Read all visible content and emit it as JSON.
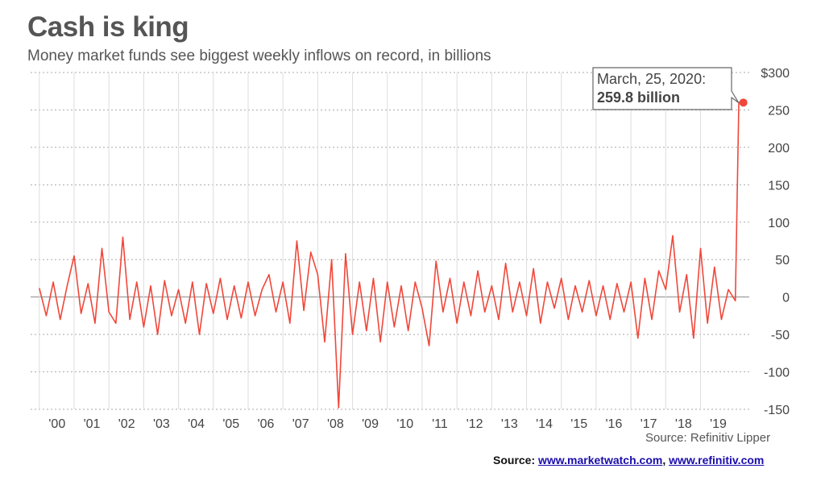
{
  "header": {
    "title": "Cash is king",
    "subtitle": "Money market funds see biggest weekly inflows on record, in billions"
  },
  "source_note": "Source: Refinitiv Lipper",
  "footer": {
    "prefix": "Source:",
    "link1": "www.marketwatch.com",
    "separator": ",",
    "link2": "www.refinitiv.com"
  },
  "chart_data": {
    "type": "line",
    "title": "Cash is king",
    "subtitle": "Money market funds see biggest weekly inflows on record, in billions",
    "xlabel": "",
    "ylabel": "",
    "ylim": [
      -150,
      300
    ],
    "xlim": [
      1999.75,
      2020.4
    ],
    "y_ticks": [
      300,
      250,
      200,
      150,
      100,
      50,
      0,
      -50,
      -100,
      -150
    ],
    "y_tick_labels": [
      "$300",
      "250",
      "200",
      "150",
      "100",
      "50",
      "0",
      "-50",
      "-100",
      "-150"
    ],
    "x_tick_labels": [
      "'00",
      "'01",
      "'02",
      "'03",
      "'04",
      "'05",
      "'06",
      "'07",
      "'08",
      "'09",
      "'10",
      "'11",
      "'12",
      "'13",
      "'14",
      "'15",
      "'16",
      "'17",
      "'18",
      "'19"
    ],
    "grid": true,
    "line_color": "#f0473a",
    "series": [
      {
        "frequency": "weekly",
        "x": [
          2000.0,
          2000.2,
          2000.4,
          2000.6,
          2000.8,
          2001.0,
          2001.2,
          2001.4,
          2001.6,
          2001.8,
          2002.0,
          2002.2,
          2002.4,
          2002.6,
          2002.8,
          2003.0,
          2003.2,
          2003.4,
          2003.6,
          2003.8,
          2004.0,
          2004.2,
          2004.4,
          2004.6,
          2004.8,
          2005.0,
          2005.2,
          2005.4,
          2005.6,
          2005.8,
          2006.0,
          2006.2,
          2006.4,
          2006.6,
          2006.8,
          2007.0,
          2007.2,
          2007.4,
          2007.6,
          2007.8,
          2008.0,
          2008.2,
          2008.4,
          2008.6,
          2008.8,
          2009.0,
          2009.2,
          2009.4,
          2009.6,
          2009.8,
          2010.0,
          2010.2,
          2010.4,
          2010.6,
          2010.8,
          2011.0,
          2011.2,
          2011.4,
          2011.6,
          2011.8,
          2012.0,
          2012.2,
          2012.4,
          2012.6,
          2012.8,
          2013.0,
          2013.2,
          2013.4,
          2013.6,
          2013.8,
          2014.0,
          2014.2,
          2014.4,
          2014.6,
          2014.8,
          2015.0,
          2015.2,
          2015.4,
          2015.6,
          2015.8,
          2016.0,
          2016.2,
          2016.4,
          2016.6,
          2016.8,
          2017.0,
          2017.2,
          2017.4,
          2017.6,
          2017.8,
          2018.0,
          2018.2,
          2018.4,
          2018.6,
          2018.8,
          2019.0,
          2019.2,
          2019.4,
          2019.6,
          2019.8,
          2020.0,
          2020.1,
          2020.15,
          2020.2,
          2020.23
        ],
        "values": [
          12,
          -25,
          20,
          -30,
          15,
          55,
          -22,
          18,
          -35,
          65,
          -20,
          -35,
          80,
          -30,
          20,
          -40,
          15,
          -50,
          22,
          -25,
          10,
          -35,
          20,
          -50,
          18,
          -22,
          25,
          -30,
          15,
          -28,
          20,
          -25,
          10,
          30,
          -20,
          20,
          -35,
          75,
          -18,
          60,
          30,
          -60,
          50,
          -148,
          58,
          -50,
          20,
          -45,
          25,
          -60,
          20,
          -40,
          15,
          -45,
          20,
          -15,
          -65,
          48,
          -20,
          25,
          -35,
          20,
          -25,
          35,
          -20,
          15,
          -30,
          45,
          -20,
          20,
          -25,
          38,
          -35,
          20,
          -15,
          25,
          -30,
          15,
          -20,
          22,
          -25,
          15,
          -30,
          18,
          -20,
          20,
          -55,
          25,
          -30,
          35,
          10,
          82,
          -20,
          30,
          -55,
          65,
          -35,
          40,
          -30,
          10,
          -5,
          260,
          259.8,
          259.8,
          259.8
        ]
      }
    ],
    "annotation": {
      "label_line1": "March,  25, 2020:",
      "label_line2": "259.8 billion",
      "x": 2020.23,
      "y": 259.8
    }
  }
}
